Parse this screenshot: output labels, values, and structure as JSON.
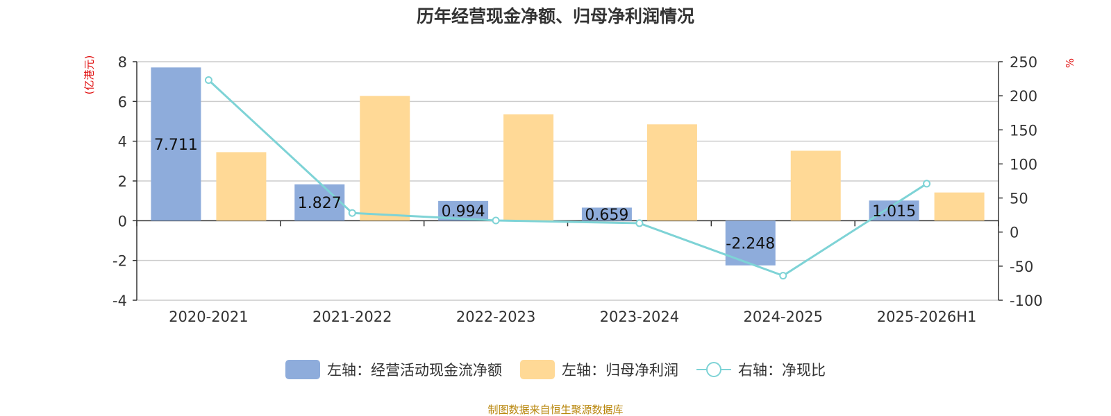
{
  "title": "历年经营现金净额、归母净利润情况",
  "left_unit": "(亿港元)",
  "right_unit": "%",
  "source": "制图数据来自恒生聚源数据库",
  "colors": {
    "operating_cash": "#8eacdb",
    "net_profit": "#ffd996",
    "ratio": "#7ed3d6",
    "grid": "#cccccc",
    "axis": "#333333"
  },
  "legend": [
    {
      "label": "左轴：经营活动现金流净额",
      "icon": "bar-swatch"
    },
    {
      "label": "左轴：归母净利润",
      "icon": "bar-swatch"
    },
    {
      "label": "右轴：净现比",
      "icon": "line-marker-swatch"
    }
  ],
  "chart_data": {
    "type": "bar",
    "categories": [
      "2020-2021",
      "2021-2022",
      "2022-2023",
      "2023-2024",
      "2024-2025",
      "2025-2026H1"
    ],
    "series": [
      {
        "name": "左轴：经营活动现金流净额",
        "type": "bar",
        "axis": "left",
        "values": [
          7.711,
          1.827,
          0.994,
          0.659,
          -2.248,
          1.015
        ],
        "data_labels": [
          "7.711",
          "1.827",
          "0.994",
          "0.659",
          "-2.248",
          "1.015"
        ]
      },
      {
        "name": "左轴：归母净利润",
        "type": "bar",
        "axis": "left",
        "values": [
          3.45,
          6.28,
          5.35,
          4.85,
          3.52,
          1.42
        ]
      },
      {
        "name": "右轴：净现比",
        "type": "line",
        "axis": "right",
        "values": [
          223,
          28,
          17,
          13,
          -64,
          71
        ]
      }
    ],
    "left_axis": {
      "min": -4,
      "max": 8,
      "ticks": [
        -4,
        -2,
        0,
        2,
        4,
        6,
        8
      ]
    },
    "right_axis": {
      "min": -100,
      "max": 250,
      "ticks": [
        -100,
        -50,
        0,
        50,
        100,
        150,
        200,
        250
      ]
    },
    "grid": true,
    "legend_position": "bottom"
  }
}
